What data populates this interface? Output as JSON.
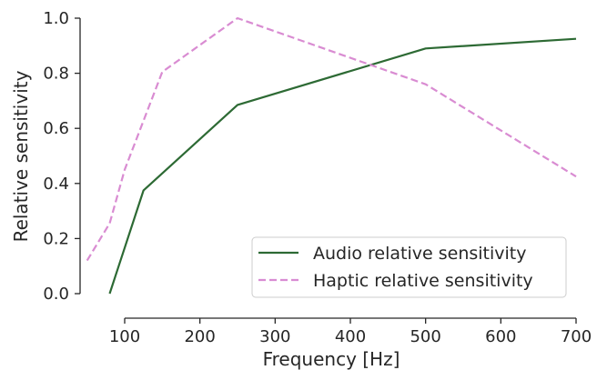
{
  "chart_data": {
    "type": "line",
    "title": "",
    "xlabel": "Frequency [Hz]",
    "ylabel": "Relative sensitivity",
    "xlim": [
      45,
      700
    ],
    "ylim": [
      -0.04,
      1.0
    ],
    "xticks": [
      100,
      200,
      300,
      400,
      500,
      600,
      700
    ],
    "yticks": [
      0.0,
      0.2,
      0.4,
      0.6,
      0.8,
      1.0
    ],
    "xtick_labels": [
      "100",
      "200",
      "300",
      "400",
      "500",
      "600",
      "700"
    ],
    "ytick_labels": [
      "0.0",
      "0.2",
      "0.4",
      "0.6",
      "0.8",
      "1.0"
    ],
    "grid": false,
    "legend_position": "lower-right",
    "series": [
      {
        "name": "Audio relative sensitivity",
        "color": "#2d6a34",
        "dash": "solid",
        "x": [
          80,
          125,
          250,
          500,
          700
        ],
        "y": [
          0.0,
          0.375,
          0.685,
          0.89,
          0.925
        ]
      },
      {
        "name": "Haptic relative sensitivity",
        "color": "#d98cd2",
        "dash": "dashed",
        "x": [
          50,
          80,
          100,
          150,
          250,
          500,
          700
        ],
        "y": [
          0.12,
          0.255,
          0.45,
          0.805,
          1.0,
          0.76,
          0.425
        ]
      }
    ]
  }
}
